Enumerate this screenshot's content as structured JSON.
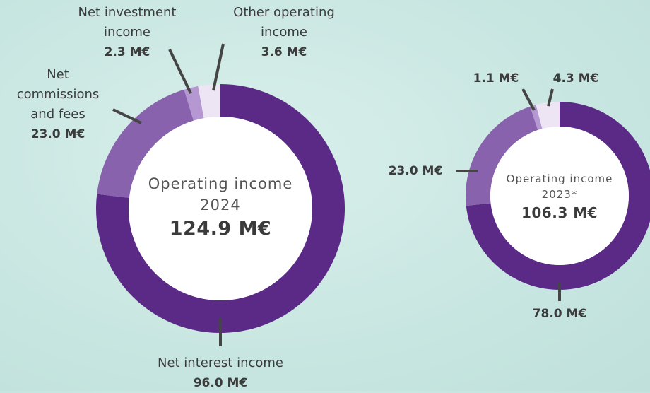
{
  "chart_data": [
    {
      "type": "donut",
      "title": "Operating income 2024",
      "total_label": "124.9 M€",
      "categories": [
        "Net interest income",
        "Net commissions and fees",
        "Net investment income",
        "Other operating income"
      ],
      "values": [
        96.0,
        23.0,
        2.3,
        3.6
      ],
      "value_labels": [
        "96.0 M€",
        "23.0 M€",
        "2.3 M€",
        "3.6 M€"
      ],
      "colors": [
        "#5b2a86",
        "#8862ad",
        "#b597d2",
        "#ede4f4"
      ]
    },
    {
      "type": "donut",
      "title": "Operating income 2023*",
      "total_label": "106.3 M€",
      "categories": [
        null,
        null,
        null,
        null
      ],
      "values": [
        78.0,
        23.0,
        1.1,
        4.3
      ],
      "value_labels": [
        "78.0 M€",
        "23.0 M€",
        "1.1 M€",
        "4.3 M€"
      ],
      "colors": [
        "#5b2a86",
        "#8862ad",
        "#b597d2",
        "#ede4f4"
      ]
    }
  ]
}
